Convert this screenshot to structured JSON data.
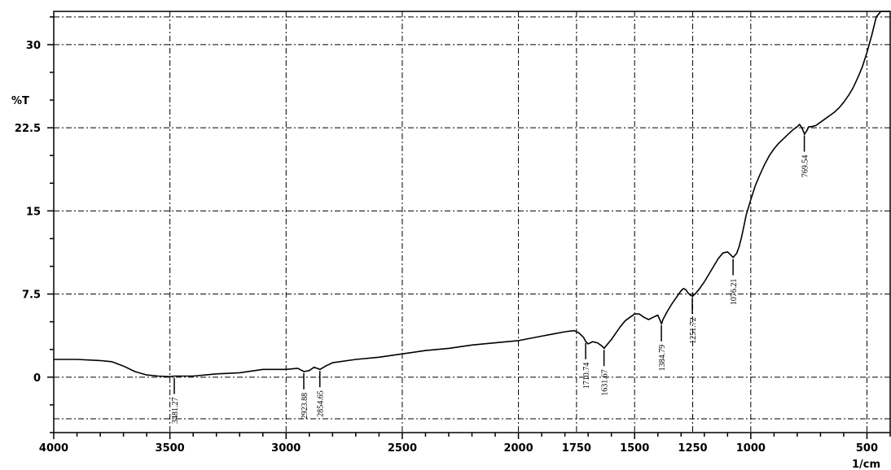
{
  "chart_data": {
    "type": "line",
    "title": "",
    "xlabel": "1/cm",
    "ylabel": "%T",
    "xlim": [
      4000,
      400
    ],
    "ylim": [
      -5,
      33
    ],
    "x_ticks": [
      4000,
      3500,
      3000,
      2500,
      2000,
      1750,
      1500,
      1250,
      1000,
      500
    ],
    "x_tick_labels": [
      "4000",
      "3500",
      "3000",
      "2500",
      "2000",
      "1750",
      "1500",
      "1250",
      "1000",
      "500"
    ],
    "y_ticks": [
      0,
      7.5,
      15,
      22.5,
      30
    ],
    "y_tick_labels": [
      "0",
      "7.5",
      "15",
      "22.5",
      "30"
    ],
    "grid": true,
    "series": [
      {
        "x": [
          4000,
          3900,
          3800,
          3750,
          3700,
          3650,
          3600,
          3550,
          3500,
          3481,
          3450,
          3400,
          3300,
          3200,
          3100,
          3000,
          2950,
          2923,
          2900,
          2880,
          2854,
          2830,
          2800,
          2700,
          2600,
          2500,
          2400,
          2300,
          2200,
          2100,
          2000,
          1950,
          1900,
          1850,
          1800,
          1760,
          1740,
          1720,
          1710,
          1700,
          1680,
          1660,
          1640,
          1631,
          1620,
          1600,
          1580,
          1560,
          1540,
          1520,
          1500,
          1480,
          1460,
          1440,
          1420,
          1400,
          1390,
          1384,
          1378,
          1360,
          1340,
          1320,
          1300,
          1290,
          1280,
          1270,
          1260,
          1251,
          1240,
          1220,
          1200,
          1180,
          1160,
          1140,
          1120,
          1100,
          1090,
          1076,
          1060,
          1050,
          1040,
          1030,
          1020,
          1000,
          980,
          960,
          940,
          920,
          900,
          880,
          860,
          840,
          820,
          800,
          790,
          780,
          770,
          769,
          760,
          750,
          740,
          720,
          700,
          680,
          660,
          640,
          620,
          600,
          580,
          560,
          540,
          520,
          500,
          480,
          460,
          440,
          420,
          400
        ],
        "y": [
          1.6,
          1.6,
          1.5,
          1.4,
          1.0,
          0.5,
          0.2,
          0.1,
          0.05,
          0.1,
          0.1,
          0.1,
          0.3,
          0.4,
          0.7,
          0.7,
          0.8,
          0.5,
          0.6,
          0.9,
          0.7,
          1.0,
          1.3,
          1.6,
          1.8,
          2.1,
          2.4,
          2.6,
          2.9,
          3.1,
          3.3,
          3.5,
          3.7,
          3.9,
          4.1,
          4.2,
          4.0,
          3.6,
          3.2,
          3.0,
          3.2,
          3.1,
          2.8,
          2.6,
          2.9,
          3.4,
          4.0,
          4.6,
          5.1,
          5.4,
          5.7,
          5.7,
          5.4,
          5.2,
          5.4,
          5.6,
          5.1,
          4.8,
          5.2,
          5.9,
          6.6,
          7.2,
          7.8,
          8.0,
          7.9,
          7.6,
          7.4,
          7.3,
          7.5,
          8.0,
          8.6,
          9.3,
          10.0,
          10.7,
          11.2,
          11.3,
          11.1,
          10.8,
          11.2,
          11.8,
          12.6,
          13.6,
          14.6,
          16.0,
          17.3,
          18.3,
          19.2,
          20.0,
          20.6,
          21.1,
          21.5,
          21.9,
          22.3,
          22.6,
          22.8,
          22.5,
          22.0,
          21.9,
          22.2,
          22.6,
          22.6,
          22.7,
          23.0,
          23.3,
          23.6,
          23.9,
          24.3,
          24.8,
          25.4,
          26.1,
          27.0,
          28.0,
          29.3,
          30.8,
          32.5,
          34.2,
          35.7,
          37.0
        ]
      }
    ],
    "peak_labels": [
      {
        "x": 3481.27,
        "label": "3481.27"
      },
      {
        "x": 2923.88,
        "label": "2923.88"
      },
      {
        "x": 2854.65,
        "label": "2854.65"
      },
      {
        "x": 1710.74,
        "label": "1710.74"
      },
      {
        "x": 1631.67,
        "label": "1631.67"
      },
      {
        "x": 1384.79,
        "label": "1384.79"
      },
      {
        "x": 1251.72,
        "label": "1251.72"
      },
      {
        "x": 1076.21,
        "label": "1076.21"
      },
      {
        "x": 769.54,
        "label": "769.54"
      }
    ]
  }
}
